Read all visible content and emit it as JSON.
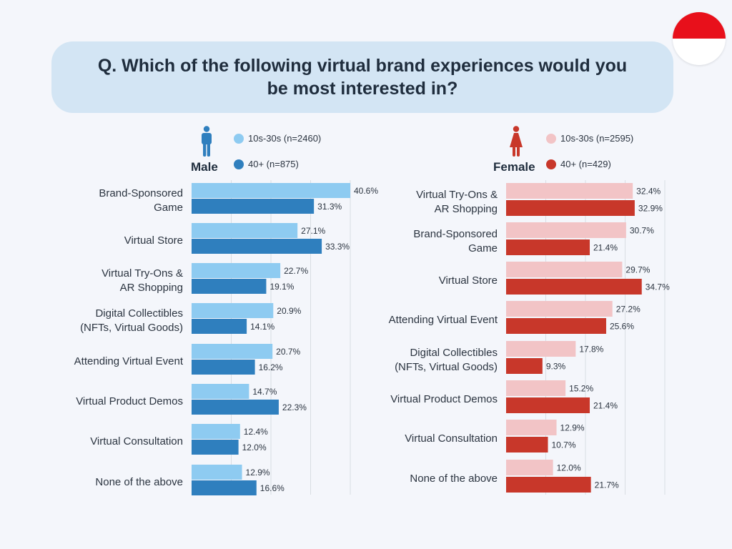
{
  "question": "Q. Which of the following virtual brand experiences would you be most interested in?",
  "flag": {
    "top_color": "#e8101b",
    "bottom_color": "#ffffff",
    "icon": "indonesia-flag-icon"
  },
  "colors": {
    "male_young": "#8ecbf1",
    "male_old": "#2f7fbe",
    "female_young": "#f2c4c6",
    "female_old": "#c8372a",
    "male_icon": "#2f7fbe",
    "female_icon": "#c8372a",
    "gridline": "#d9dde3"
  },
  "chart_data": [
    {
      "type": "bar",
      "orientation": "horizontal",
      "panel": "Male",
      "categories": [
        "Brand-Sponsored Game",
        "Virtual Store",
        "Virtual Try-Ons & AR Shopping",
        "Digital Collectibles (NFTs, Virtual Goods)",
        "Attending Virtual Event",
        "Virtual Product Demos",
        "Virtual Consultation",
        "None of the above"
      ],
      "category_lines": [
        [
          "Brand-Sponsored",
          "Game"
        ],
        [
          "Virtual Store"
        ],
        [
          "Virtual Try-Ons &",
          "AR Shopping"
        ],
        [
          "Digital Collectibles",
          "(NFTs, Virtual Goods)"
        ],
        [
          "Attending Virtual Event"
        ],
        [
          "Virtual Product Demos"
        ],
        [
          "Virtual Consultation"
        ],
        [
          "None of the above"
        ]
      ],
      "series": [
        {
          "name": "10s-30s (n=2460)",
          "values": [
            40.6,
            27.1,
            22.7,
            20.9,
            20.7,
            14.7,
            12.4,
            12.9
          ],
          "labels": [
            "40.6%",
            "27.1%",
            "22.7%",
            "20.9%",
            "20.7%",
            "14.7%",
            "12.4%",
            "12.9%"
          ]
        },
        {
          "name": "40+ (n=875)",
          "values": [
            31.3,
            33.3,
            19.1,
            14.1,
            16.2,
            22.3,
            12.0,
            16.6
          ],
          "labels": [
            "31.3%",
            "33.3%",
            "19.1%",
            "14.1%",
            "16.2%",
            "22.3%",
            "12.0%",
            "16.6%"
          ]
        }
      ],
      "xlim": [
        0,
        40.6
      ],
      "grid": true,
      "legend_placement": "top"
    },
    {
      "type": "bar",
      "orientation": "horizontal",
      "panel": "Female",
      "categories": [
        "Virtual Try-Ons & AR Shopping",
        "Brand-Sponsored Game",
        "Virtual Store",
        "Attending Virtual Event",
        "Digital Collectibles (NFTs, Virtual Goods)",
        "Virtual Product Demos",
        "Virtual Consultation",
        "None of the above"
      ],
      "category_lines": [
        [
          "Virtual Try-Ons &",
          "AR Shopping"
        ],
        [
          "Brand-Sponsored",
          "Game"
        ],
        [
          "Virtual Store"
        ],
        [
          "Attending Virtual Event"
        ],
        [
          "Digital Collectibles",
          "(NFTs, Virtual Goods)"
        ],
        [
          "Virtual Product Demos"
        ],
        [
          "Virtual Consultation"
        ],
        [
          "None of the above"
        ]
      ],
      "series": [
        {
          "name": "10s-30s (n=2595)",
          "values": [
            32.4,
            30.7,
            29.7,
            27.2,
            17.8,
            15.2,
            12.9,
            12.0
          ],
          "labels": [
            "32.4%",
            "30.7%",
            "29.7%",
            "27.2%",
            "17.8%",
            "15.2%",
            "12.9%",
            "12.0%"
          ]
        },
        {
          "name": "40+ (n=429)",
          "values": [
            32.9,
            21.4,
            34.7,
            25.6,
            9.3,
            21.4,
            10.7,
            21.7
          ],
          "labels": [
            "32.9%",
            "21.4%",
            "34.7%",
            "25.6%",
            "9.3%",
            "21.4%",
            "10.7%",
            "21.7%"
          ]
        }
      ],
      "xlim": [
        0,
        40.6
      ],
      "grid": true,
      "legend_placement": "top"
    }
  ],
  "male": {
    "label": "Male",
    "icon": "male-person-icon",
    "legend_young": "10s-30s (n=2460)",
    "legend_old": "40+ (n=875)"
  },
  "female": {
    "label": "Female",
    "icon": "female-person-icon",
    "legend_young": "10s-30s (n=2595)",
    "legend_old": "40+ (n=429)"
  }
}
